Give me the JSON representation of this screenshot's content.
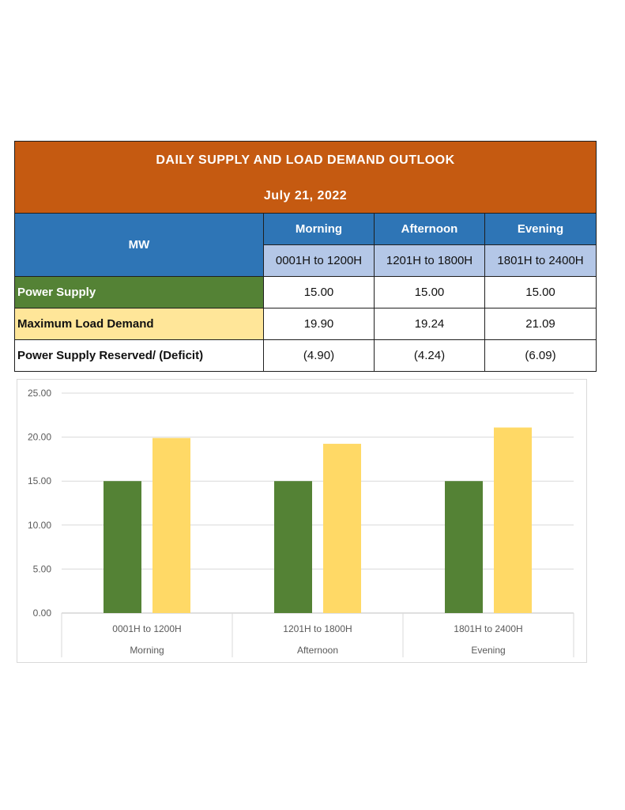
{
  "table": {
    "title": "DAILY SUPPLY AND LOAD DEMAND OUTLOOK",
    "date": "July 21, 2022",
    "unit_label": "MW",
    "periods": [
      {
        "name": "Morning",
        "range": "0001H to 1200H"
      },
      {
        "name": "Afternoon",
        "range": "1201H to 1800H"
      },
      {
        "name": "Evening",
        "range": "1801H to 2400H"
      }
    ],
    "rows": [
      {
        "label": "Power Supply",
        "values": [
          "15.00",
          "15.00",
          "15.00"
        ]
      },
      {
        "label": "Maximum Load Demand",
        "values": [
          "19.90",
          "19.24",
          "21.09"
        ]
      },
      {
        "label": "Power Supply Reserved/ (Deficit)",
        "values": [
          "(4.90)",
          "(4.24)",
          "(6.09)"
        ]
      }
    ]
  },
  "chart_data": {
    "type": "bar",
    "categories": [
      "0001H to 1200H",
      "1201H to 1800H",
      "1801H to 2400H"
    ],
    "category_groups": [
      "Morning",
      "Afternoon",
      "Evening"
    ],
    "series": [
      {
        "values": [
          15.0,
          15.0,
          15.0
        ],
        "color": "#548235"
      },
      {
        "values": [
          19.9,
          19.24,
          21.09
        ],
        "color": "#ffd966"
      }
    ],
    "yticks": [
      "0.00",
      "5.00",
      "10.00",
      "15.00",
      "20.00",
      "25.00"
    ],
    "ylim": [
      0,
      25
    ],
    "grid": true
  }
}
